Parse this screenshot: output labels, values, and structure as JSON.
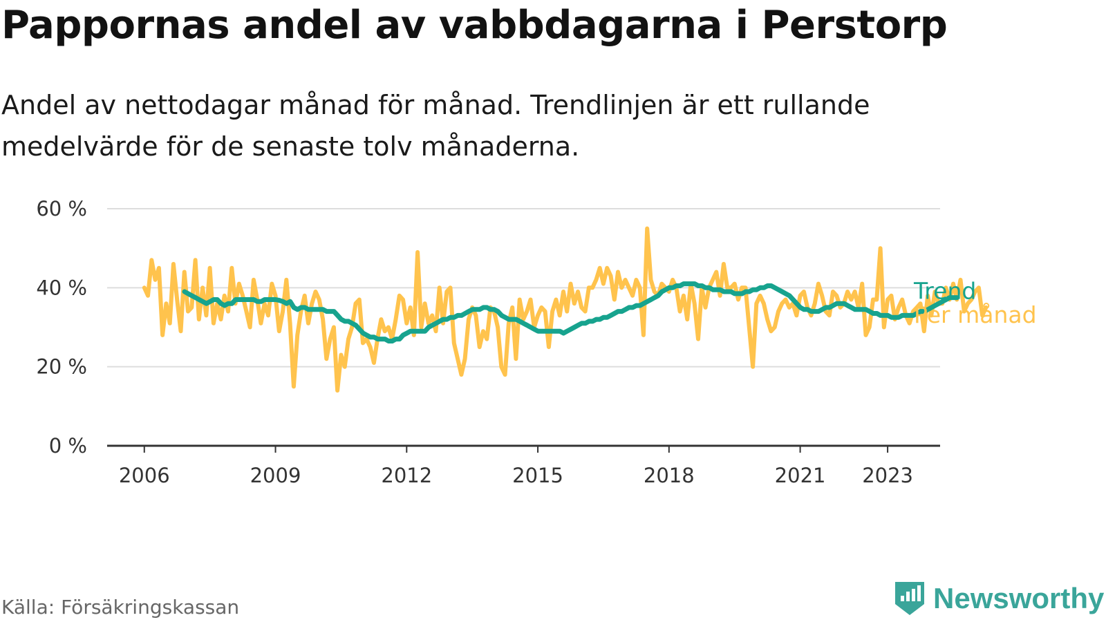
{
  "title": "Pappornas andel av vabbdagarna i Perstorp",
  "subtitle": "Andel av nettodagar månad för månad. Trendlinjen är ett rullande medelvärde för de senaste tolv månaderna.",
  "source": "Källa: Försäkringskassan",
  "brand": {
    "name": "Newsworthy",
    "icon": "newsworthy-chart-icon"
  },
  "colors": {
    "monthly": "#ffc34d",
    "trend": "#17a38e",
    "grid": "#dddddd",
    "axis": "#333333"
  },
  "chart_data": {
    "type": "line",
    "x_unit": "year",
    "xlim": [
      2005.15,
      2024.2
    ],
    "ylim": [
      0,
      60
    ],
    "y_ticks": [
      0,
      20,
      40,
      60
    ],
    "y_tick_labels": [
      "0 %",
      "20 %",
      "40 %",
      "60 %"
    ],
    "x_ticks": [
      2006,
      2009,
      2012,
      2015,
      2018,
      2021,
      2023
    ],
    "x_tick_labels": [
      "2006",
      "2009",
      "2012",
      "2015",
      "2018",
      "2021",
      "2023"
    ],
    "grid": true,
    "legend": "end-of-line labels, right",
    "series": [
      {
        "name": "Per månad",
        "color": "#ffc34d",
        "x_start": 2006.0,
        "x_step": 0.0833333,
        "values": [
          40,
          38,
          47,
          42,
          45,
          28,
          36,
          31,
          46,
          37,
          29,
          44,
          34,
          35,
          47,
          32,
          40,
          33,
          45,
          31,
          36,
          32,
          38,
          34,
          45,
          36,
          41,
          38,
          34,
          30,
          42,
          37,
          31,
          36,
          33,
          41,
          38,
          29,
          34,
          42,
          31,
          15,
          28,
          34,
          38,
          31,
          36,
          39,
          37,
          32,
          22,
          27,
          30,
          14,
          23,
          20,
          27,
          30,
          36,
          37,
          26,
          27,
          25,
          21,
          27,
          32,
          29,
          30,
          27,
          32,
          38,
          37,
          31,
          35,
          28,
          49,
          30,
          36,
          31,
          33,
          29,
          40,
          31,
          39,
          40,
          26,
          22,
          18,
          22,
          32,
          35,
          33,
          25,
          29,
          27,
          35,
          34,
          30,
          20,
          18,
          31,
          35,
          22,
          37,
          32,
          34,
          37,
          30,
          33,
          35,
          34,
          25,
          34,
          37,
          33,
          39,
          34,
          41,
          36,
          39,
          35,
          34,
          40,
          40,
          42,
          45,
          41,
          45,
          43,
          37,
          44,
          40,
          42,
          40,
          38,
          42,
          40,
          28,
          55,
          42,
          39,
          38,
          41,
          40,
          39,
          42,
          40,
          34,
          38,
          32,
          41,
          36,
          27,
          40,
          35,
          40,
          42,
          44,
          38,
          46,
          40,
          40,
          41,
          37,
          40,
          40,
          30,
          20,
          36,
          38,
          36,
          32,
          29,
          30,
          34,
          36,
          37,
          35,
          36,
          33,
          38,
          39,
          35,
          33,
          36,
          41,
          38,
          34,
          33,
          39,
          38,
          35,
          36,
          39,
          37,
          39,
          35,
          41,
          28,
          30,
          37,
          37,
          50,
          30,
          37,
          38,
          32,
          35,
          37,
          33,
          31,
          34,
          35,
          36,
          29,
          38,
          33,
          39,
          36,
          36,
          40,
          37,
          41,
          37,
          42,
          34,
          36,
          37,
          39,
          40,
          33,
          35
        ]
      },
      {
        "name": "Trend",
        "color": "#17a38e",
        "x_start": 2006.92,
        "x_step": 0.0833333,
        "values": [
          39,
          38.5,
          38,
          37.5,
          37,
          36.5,
          36,
          36.5,
          37,
          37,
          36,
          35.5,
          36,
          36,
          37,
          37,
          37,
          37,
          37,
          37,
          36.5,
          36.5,
          37,
          37,
          37,
          37,
          36.8,
          36.5,
          36,
          36.5,
          35,
          34.5,
          35,
          35,
          34.5,
          34.5,
          34.5,
          34.5,
          34.5,
          34,
          34,
          34,
          33,
          32,
          31.5,
          31.5,
          31,
          30.5,
          29.5,
          28.5,
          28,
          27.5,
          27.5,
          27,
          27,
          27,
          26.5,
          26.5,
          27,
          27,
          28,
          28.5,
          29,
          29,
          29,
          29,
          29,
          30,
          30.5,
          31,
          31.5,
          32,
          32,
          32.5,
          32.5,
          33,
          33,
          33.5,
          34,
          34.5,
          34.5,
          34.5,
          35,
          35,
          34.5,
          34.5,
          34,
          33,
          32.5,
          32,
          32,
          32,
          31.5,
          31,
          30.5,
          30,
          29.5,
          29,
          29,
          29,
          29,
          29,
          29,
          29,
          28.5,
          29,
          29.5,
          30,
          30.5,
          31,
          31,
          31.5,
          31.5,
          32,
          32,
          32.5,
          32.5,
          33,
          33.5,
          34,
          34,
          34.5,
          35,
          35,
          35.5,
          35.5,
          36,
          36.5,
          37,
          37.5,
          38,
          39,
          39.5,
          40,
          40,
          40.5,
          40.5,
          41,
          41,
          41,
          41,
          40.5,
          40.5,
          40,
          40,
          39.5,
          39.5,
          39.5,
          39,
          39,
          39,
          38.5,
          38.5,
          38.5,
          39,
          39,
          39.5,
          39.5,
          40,
          40,
          40.5,
          40.5,
          40,
          39.5,
          39,
          38.5,
          38,
          37,
          36,
          35,
          34.5,
          34.5,
          34,
          34,
          34,
          34.5,
          35,
          35,
          35.5,
          36,
          36,
          36,
          35.5,
          35,
          34.5,
          34.5,
          34.5,
          34.5,
          34,
          33.5,
          33.5,
          33,
          33,
          33,
          32.5,
          32.5,
          32.5,
          33,
          33,
          33,
          33,
          33.5,
          34,
          34,
          34.5,
          35,
          35.5,
          36,
          36.5,
          37,
          37.5,
          37.5,
          37.5
        ]
      }
    ]
  }
}
